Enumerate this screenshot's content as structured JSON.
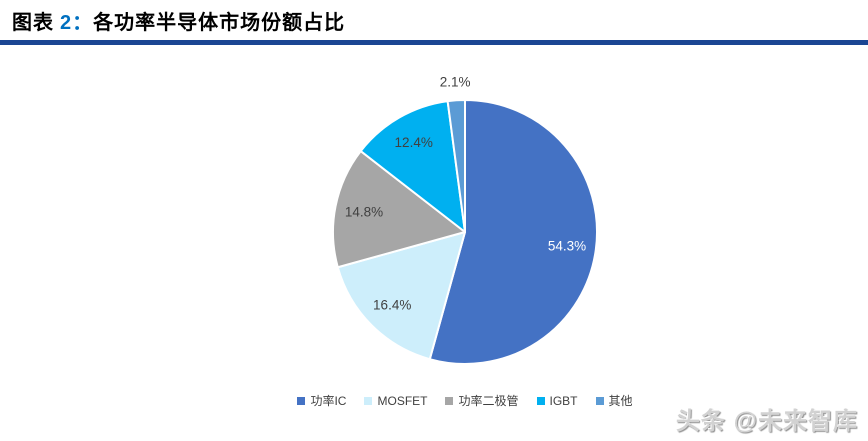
{
  "header": {
    "title_prefix": "图表 ",
    "title_number": "2：",
    "title_text": "各功率半导体市场份额占比",
    "number_color": "#0070C0",
    "underline_color": "#1B4693"
  },
  "chart_data": {
    "type": "pie",
    "title": "各功率半导体市场份额占比",
    "start_angle_deg": 0,
    "direction": "clockwise",
    "legend_position": "bottom",
    "series": [
      {
        "label": "功率IC",
        "value": 54.3,
        "display": "54.3%",
        "color": "#4472C4",
        "label_color": "#FFFFFF",
        "label_placement": "inside"
      },
      {
        "label": "MOSFET",
        "value": 16.4,
        "display": "16.4%",
        "color": "#CDEEFB",
        "label_color": "#404040",
        "label_placement": "inside"
      },
      {
        "label": "功率二极管",
        "value": 14.8,
        "display": "14.8%",
        "color": "#A6A6A6",
        "label_color": "#404040",
        "label_placement": "inside"
      },
      {
        "label": "IGBT",
        "value": 12.4,
        "display": "12.4%",
        "color": "#00B0F0",
        "label_color": "#404040",
        "label_placement": "inside"
      },
      {
        "label": "其他",
        "value": 2.1,
        "display": "2.1%",
        "color": "#5B9BD5",
        "label_color": "#404040",
        "label_placement": "outside"
      }
    ]
  },
  "watermark": {
    "text": "头条 @未来智库"
  }
}
